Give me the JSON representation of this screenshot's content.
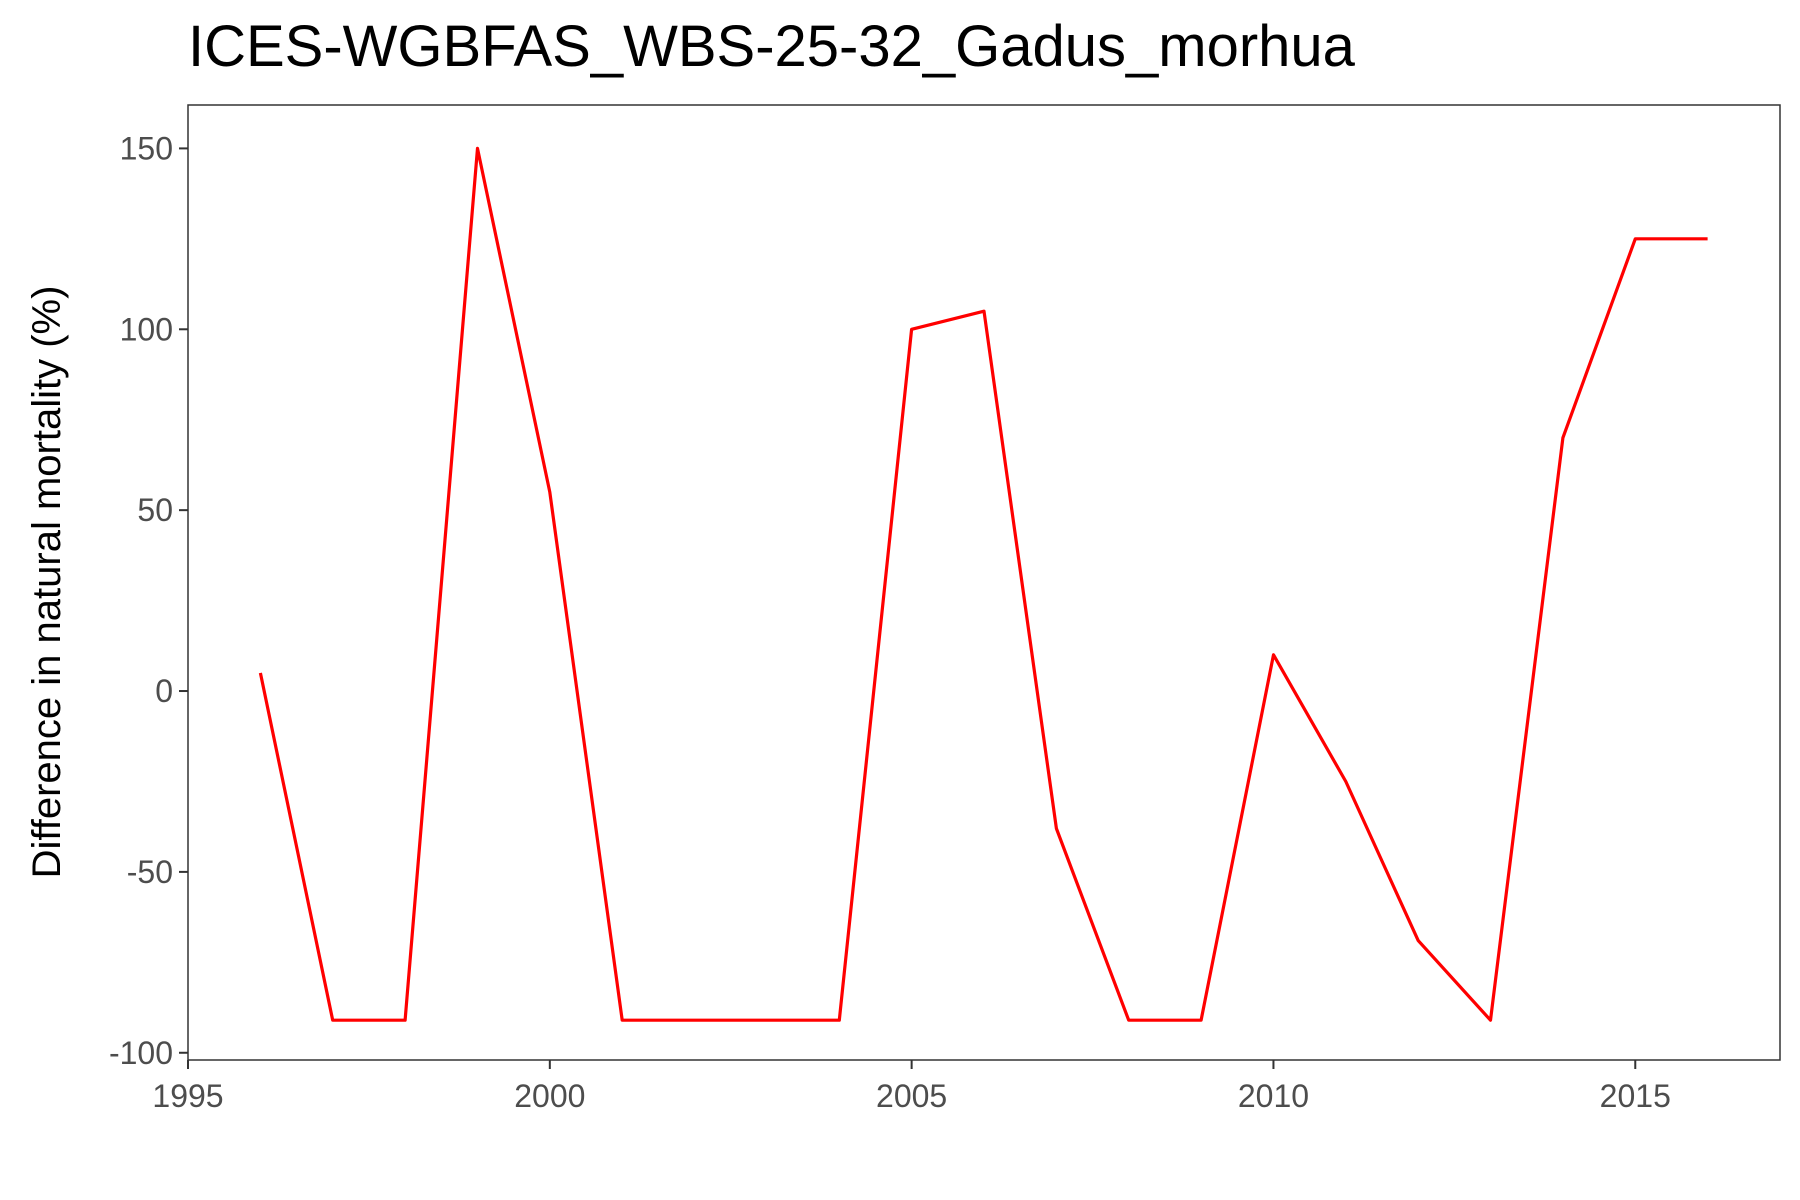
{
  "chart_data": {
    "type": "line",
    "title": "ICES-WGBFAS_WBS-25-32_Gadus_morhua",
    "xlabel": "",
    "ylabel": "Difference in natural mortality (%)",
    "xlim": [
      1995,
      2017
    ],
    "ylim": [
      -102,
      162
    ],
    "x_ticks": [
      1995,
      2000,
      2005,
      2010,
      2015
    ],
    "y_ticks": [
      -100,
      -50,
      0,
      50,
      100,
      150
    ],
    "grid": false,
    "legend": "none",
    "series": [
      {
        "color": "#ff0000",
        "x": [
          1996,
          1997,
          1998,
          1999,
          2000,
          2001,
          2002,
          2003,
          2004,
          2005,
          2006,
          2007,
          2008,
          2009,
          2010,
          2011,
          2012,
          2013,
          2014,
          2015,
          2016
        ],
        "y": [
          5,
          -91,
          -91,
          150,
          55,
          -91,
          -91,
          -91,
          -91,
          100,
          105,
          -38,
          -91,
          -91,
          10,
          -25,
          -69,
          -91,
          70,
          125,
          125
        ]
      }
    ]
  }
}
